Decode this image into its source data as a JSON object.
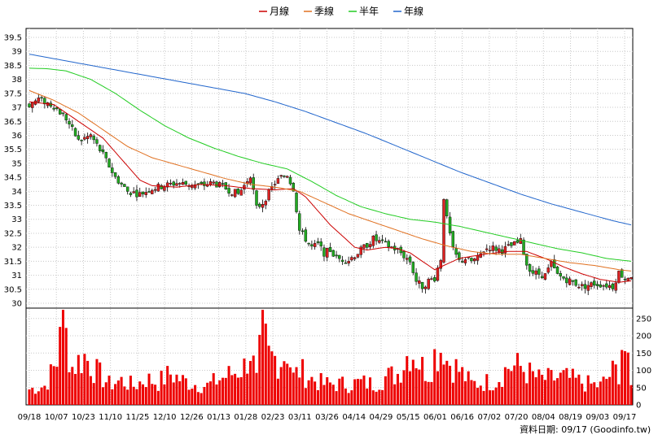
{
  "chart_data": {
    "type": "candlestick",
    "legend": [
      {
        "name": "月線",
        "color": "#cc0000"
      },
      {
        "name": "季線",
        "color": "#e07020"
      },
      {
        "name": "半年",
        "color": "#22cc22"
      },
      {
        "name": "年線",
        "color": "#2266cc"
      }
    ],
    "x_ticks": [
      "09/18",
      "10/07",
      "10/23",
      "11/10",
      "11/25",
      "12/10",
      "12/26",
      "01/13",
      "01/28",
      "02/23",
      "03/11",
      "03/26",
      "04/14",
      "04/29",
      "05/15",
      "06/01",
      "06/16",
      "07/02",
      "07/20",
      "08/04",
      "08/19",
      "09/03",
      "09/17"
    ],
    "price_ticks": [
      "39.5",
      "39",
      "38.5",
      "38",
      "37.5",
      "37",
      "36.5",
      "36",
      "35.5",
      "35",
      "34.5",
      "34",
      "33.5",
      "33",
      "32.5",
      "32",
      "31.5",
      "31",
      "30.5",
      "30"
    ],
    "price_range": [
      30,
      39.5
    ],
    "volume_ticks": [
      "250",
      "200",
      "150",
      "100",
      "50",
      "0"
    ],
    "volume_range": [
      0,
      280
    ],
    "price_anchors": [
      [
        0,
        37.1
      ],
      [
        3,
        37.3
      ],
      [
        8,
        37.05
      ],
      [
        12,
        36.6
      ],
      [
        16,
        35.8
      ],
      [
        20,
        36.0
      ],
      [
        24,
        35.3
      ],
      [
        28,
        34.5
      ],
      [
        32,
        34.0
      ],
      [
        36,
        33.9
      ],
      [
        40,
        34.1
      ],
      [
        44,
        34.2
      ],
      [
        48,
        34.3
      ],
      [
        52,
        34.25
      ],
      [
        56,
        34.2
      ],
      [
        60,
        34.3
      ],
      [
        64,
        34.1
      ],
      [
        68,
        33.9
      ],
      [
        70,
        34.2
      ],
      [
        72,
        34.6
      ],
      [
        74,
        33.4
      ],
      [
        76,
        33.6
      ],
      [
        80,
        34.3
      ],
      [
        82,
        34.5
      ],
      [
        84,
        34.6
      ],
      [
        86,
        34.1
      ],
      [
        88,
        32.6
      ],
      [
        90,
        32.3
      ],
      [
        92,
        32.0
      ],
      [
        94,
        32.1
      ],
      [
        96,
        31.8
      ],
      [
        98,
        31.9
      ],
      [
        100,
        31.6
      ],
      [
        104,
        31.55
      ],
      [
        108,
        31.9
      ],
      [
        112,
        32.3
      ],
      [
        116,
        32.1
      ],
      [
        120,
        31.9
      ],
      [
        124,
        31.5
      ],
      [
        126,
        30.8
      ],
      [
        128,
        30.6
      ],
      [
        130,
        30.8
      ],
      [
        132,
        30.9
      ],
      [
        134,
        31.6
      ],
      [
        135,
        33.8
      ],
      [
        136,
        33.0
      ],
      [
        138,
        31.9
      ],
      [
        140,
        31.5
      ],
      [
        142,
        31.6
      ],
      [
        144,
        31.5
      ],
      [
        146,
        31.6
      ],
      [
        148,
        31.9
      ],
      [
        150,
        32.0
      ],
      [
        154,
        31.9
      ],
      [
        158,
        32.1
      ],
      [
        160,
        32.2
      ],
      [
        162,
        31.4
      ],
      [
        164,
        31.1
      ],
      [
        168,
        31.0
      ],
      [
        170,
        31.4
      ],
      [
        172,
        31.0
      ],
      [
        176,
        30.8
      ],
      [
        180,
        30.6
      ],
      [
        184,
        30.7
      ],
      [
        188,
        30.65
      ],
      [
        190,
        30.6
      ],
      [
        192,
        31.1
      ],
      [
        194,
        30.9
      ],
      [
        196,
        31.0
      ]
    ],
    "ma_month": [
      [
        0,
        37.2
      ],
      [
        8,
        37.1
      ],
      [
        16,
        36.5
      ],
      [
        24,
        35.9
      ],
      [
        28,
        35.4
      ],
      [
        32,
        34.9
      ],
      [
        36,
        34.4
      ],
      [
        40,
        34.2
      ],
      [
        48,
        34.15
      ],
      [
        56,
        34.25
      ],
      [
        64,
        34.2
      ],
      [
        72,
        34.1
      ],
      [
        80,
        34.05
      ],
      [
        86,
        34.1
      ],
      [
        90,
        33.8
      ],
      [
        94,
        33.3
      ],
      [
        98,
        32.8
      ],
      [
        102,
        32.4
      ],
      [
        106,
        32.0
      ],
      [
        110,
        31.9
      ],
      [
        116,
        32.0
      ],
      [
        120,
        31.95
      ],
      [
        124,
        31.8
      ],
      [
        128,
        31.5
      ],
      [
        132,
        31.2
      ],
      [
        136,
        31.4
      ],
      [
        140,
        31.6
      ],
      [
        148,
        31.75
      ],
      [
        156,
        31.85
      ],
      [
        162,
        31.85
      ],
      [
        168,
        31.6
      ],
      [
        174,
        31.3
      ],
      [
        180,
        31.05
      ],
      [
        186,
        30.85
      ],
      [
        192,
        30.75
      ],
      [
        196,
        30.8
      ]
    ],
    "ma_quarter": [
      [
        0,
        37.6
      ],
      [
        8,
        37.25
      ],
      [
        16,
        36.8
      ],
      [
        24,
        36.2
      ],
      [
        32,
        35.6
      ],
      [
        40,
        35.2
      ],
      [
        48,
        34.95
      ],
      [
        56,
        34.7
      ],
      [
        64,
        34.45
      ],
      [
        72,
        34.25
      ],
      [
        80,
        34.15
      ],
      [
        88,
        34.0
      ],
      [
        96,
        33.6
      ],
      [
        104,
        33.2
      ],
      [
        112,
        32.9
      ],
      [
        120,
        32.6
      ],
      [
        128,
        32.3
      ],
      [
        136,
        32.05
      ],
      [
        144,
        31.85
      ],
      [
        152,
        31.75
      ],
      [
        160,
        31.75
      ],
      [
        168,
        31.6
      ],
      [
        176,
        31.45
      ],
      [
        184,
        31.35
      ],
      [
        192,
        31.2
      ],
      [
        196,
        31.15
      ]
    ],
    "ma_half": [
      [
        0,
        38.4
      ],
      [
        6,
        38.38
      ],
      [
        12,
        38.3
      ],
      [
        20,
        38.0
      ],
      [
        28,
        37.5
      ],
      [
        36,
        36.9
      ],
      [
        44,
        36.35
      ],
      [
        52,
        35.9
      ],
      [
        60,
        35.55
      ],
      [
        68,
        35.25
      ],
      [
        76,
        35.0
      ],
      [
        84,
        34.8
      ],
      [
        92,
        34.35
      ],
      [
        100,
        33.85
      ],
      [
        108,
        33.45
      ],
      [
        116,
        33.2
      ],
      [
        124,
        33.0
      ],
      [
        132,
        32.9
      ],
      [
        140,
        32.75
      ],
      [
        148,
        32.55
      ],
      [
        156,
        32.35
      ],
      [
        164,
        32.15
      ],
      [
        172,
        31.95
      ],
      [
        180,
        31.8
      ],
      [
        188,
        31.6
      ],
      [
        196,
        31.5
      ]
    ],
    "ma_year": [
      [
        0,
        38.9
      ],
      [
        10,
        38.7
      ],
      [
        20,
        38.5
      ],
      [
        30,
        38.3
      ],
      [
        40,
        38.1
      ],
      [
        50,
        37.9
      ],
      [
        60,
        37.7
      ],
      [
        70,
        37.5
      ],
      [
        80,
        37.2
      ],
      [
        90,
        36.85
      ],
      [
        100,
        36.45
      ],
      [
        110,
        36.05
      ],
      [
        120,
        35.6
      ],
      [
        130,
        35.15
      ],
      [
        140,
        34.7
      ],
      [
        150,
        34.3
      ],
      [
        160,
        33.9
      ],
      [
        170,
        33.55
      ],
      [
        180,
        33.25
      ],
      [
        190,
        32.95
      ],
      [
        196,
        32.8
      ]
    ],
    "volume_profile": [
      [
        0,
        45
      ],
      [
        5,
        55
      ],
      [
        9,
        120
      ],
      [
        10,
        280
      ],
      [
        14,
        110
      ],
      [
        18,
        140
      ],
      [
        22,
        95
      ],
      [
        26,
        60
      ],
      [
        30,
        70
      ],
      [
        34,
        55
      ],
      [
        38,
        75
      ],
      [
        42,
        65
      ],
      [
        46,
        90
      ],
      [
        50,
        70
      ],
      [
        54,
        60
      ],
      [
        58,
        55
      ],
      [
        62,
        75
      ],
      [
        66,
        90
      ],
      [
        70,
        110
      ],
      [
        72,
        160
      ],
      [
        74,
        70
      ],
      [
        76,
        215
      ],
      [
        78,
        140
      ],
      [
        82,
        130
      ],
      [
        84,
        160
      ],
      [
        86,
        80
      ],
      [
        88,
        100
      ],
      [
        92,
        75
      ],
      [
        96,
        60
      ],
      [
        100,
        60
      ],
      [
        104,
        60
      ],
      [
        108,
        65
      ],
      [
        112,
        60
      ],
      [
        116,
        80
      ],
      [
        120,
        90
      ],
      [
        124,
        160
      ],
      [
        126,
        140
      ],
      [
        128,
        110
      ],
      [
        130,
        95
      ],
      [
        132,
        145
      ],
      [
        134,
        165
      ],
      [
        135,
        180
      ],
      [
        136,
        130
      ],
      [
        140,
        100
      ],
      [
        144,
        60
      ],
      [
        148,
        65
      ],
      [
        152,
        70
      ],
      [
        156,
        110
      ],
      [
        160,
        110
      ],
      [
        162,
        95
      ],
      [
        166,
        75
      ],
      [
        170,
        75
      ],
      [
        174,
        80
      ],
      [
        178,
        70
      ],
      [
        182,
        60
      ],
      [
        186,
        55
      ],
      [
        190,
        95
      ],
      [
        192,
        100
      ],
      [
        193,
        180
      ],
      [
        194,
        160
      ],
      [
        196,
        50
      ]
    ],
    "bars": 197,
    "footer": "資料日期: 09/17  (Goodinfo.tw)"
  }
}
